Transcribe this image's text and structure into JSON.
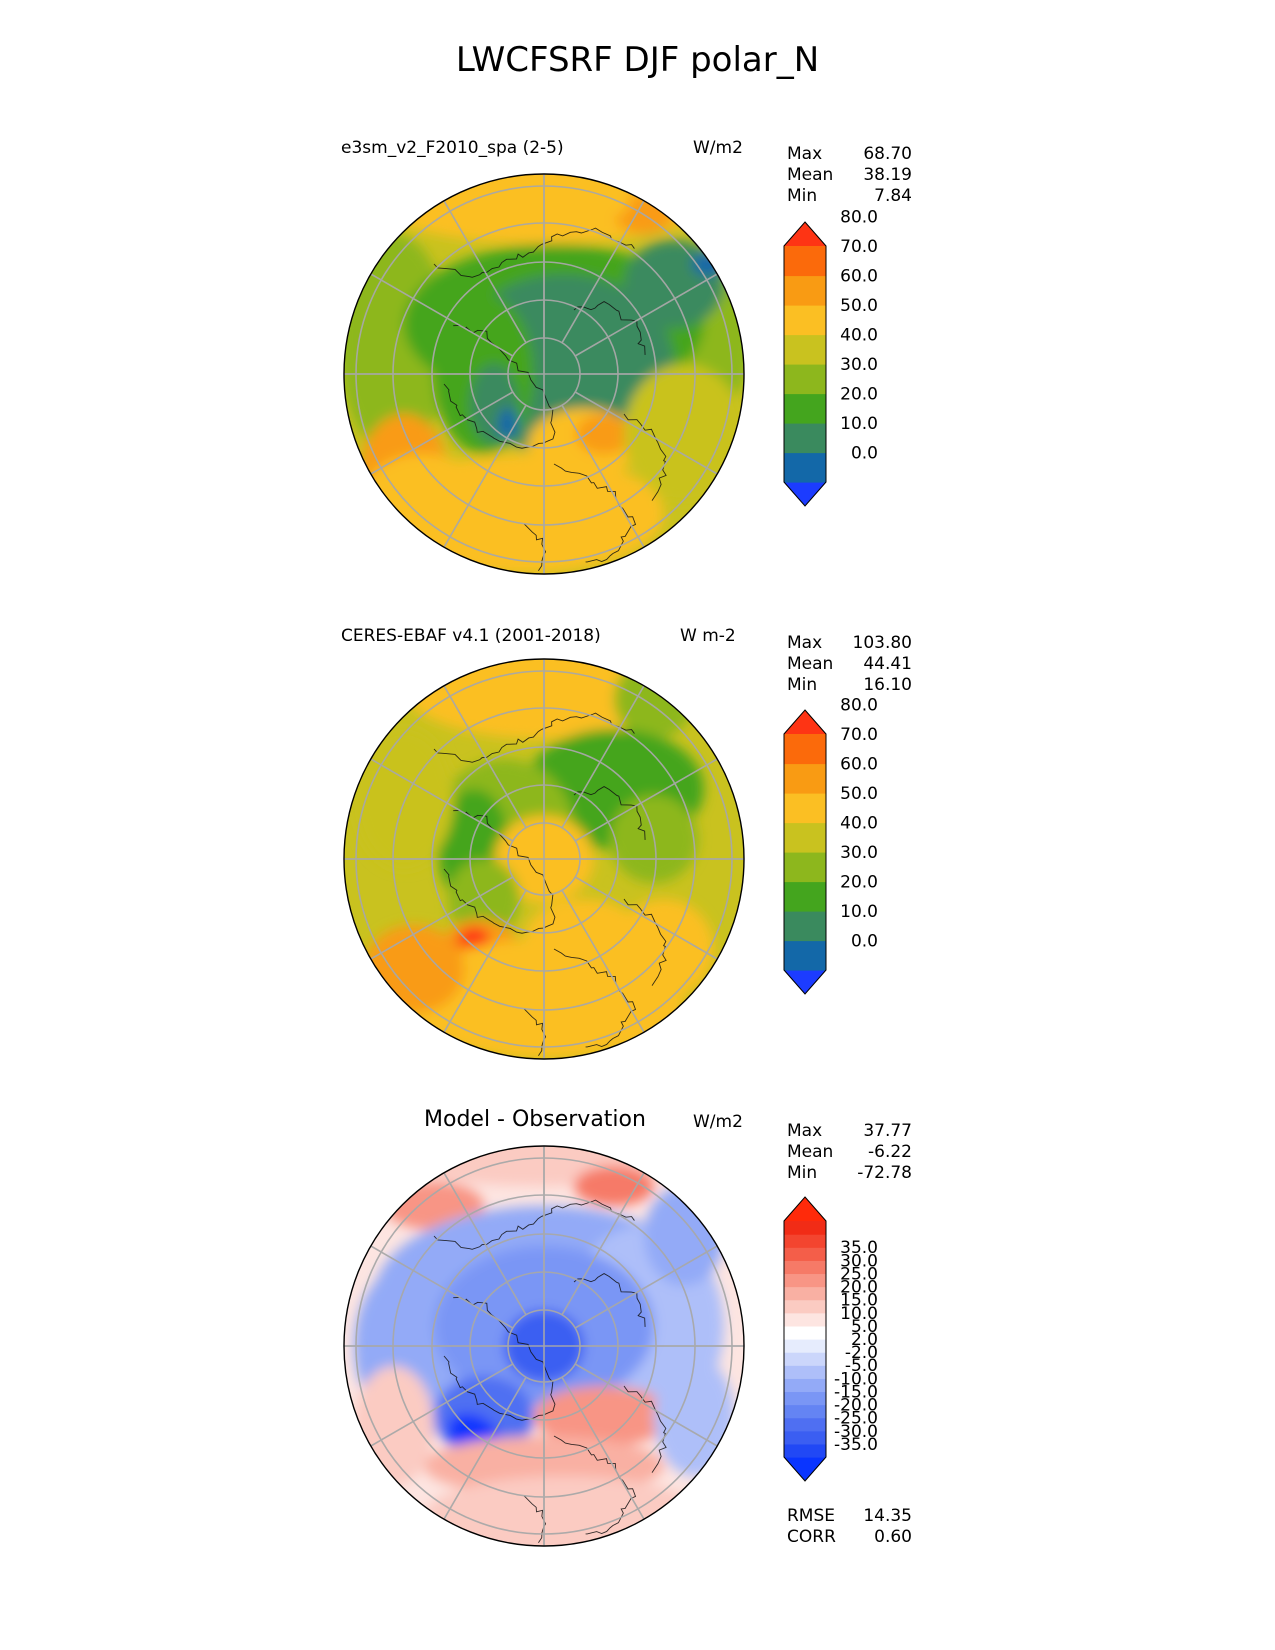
{
  "figure": {
    "title": "LWCFSRF DJF polar_N"
  },
  "panels": [
    {
      "id": "test",
      "title": "e3sm_v2_F2010_spa (2-5)",
      "units": "W/m2",
      "stats": [
        {
          "label": "Max",
          "value": "68.70"
        },
        {
          "label": "Mean",
          "value": "38.19"
        },
        {
          "label": "Min",
          "value": "7.84"
        }
      ],
      "colorbar": {
        "colors": [
          "#1c3cff",
          "#1368a8",
          "#3a8a5e",
          "#44a51e",
          "#8db71d",
          "#c9c21f",
          "#fbbf23",
          "#f99b13",
          "#fb6a0b",
          "#fe3414"
        ],
        "labels": [
          "0.0",
          "10.0",
          "20.0",
          "30.0",
          "40.0",
          "50.0",
          "60.0",
          "70.0",
          "80.0"
        ]
      }
    },
    {
      "id": "reference",
      "title": "CERES-EBAF v4.1 (2001-2018)",
      "units": "W m-2",
      "stats": [
        {
          "label": "Max",
          "value": "103.80"
        },
        {
          "label": "Mean",
          "value": "44.41"
        },
        {
          "label": "Min",
          "value": "16.10"
        }
      ],
      "colorbar": {
        "colors": [
          "#1c3cff",
          "#1368a8",
          "#3a8a5e",
          "#44a51e",
          "#8db71d",
          "#c9c21f",
          "#fbbf23",
          "#f99b13",
          "#fb6a0b",
          "#fe3414"
        ],
        "labels": [
          "0.0",
          "10.0",
          "20.0",
          "30.0",
          "40.0",
          "50.0",
          "60.0",
          "70.0",
          "80.0"
        ]
      }
    },
    {
      "id": "diff",
      "title": "Model - Observation",
      "units": "W/m2",
      "stats": [
        {
          "label": "Max",
          "value": "37.77"
        },
        {
          "label": "Mean",
          "value": "-6.22"
        },
        {
          "label": "Min",
          "value": "-72.78"
        }
      ],
      "colorbar": {
        "colors": [
          "#0a35ff",
          "#2148f5",
          "#3b5ef2",
          "#4f6ff2",
          "#6484f3",
          "#7a96f5",
          "#93aaf7",
          "#aebff9",
          "#cbd6fb",
          "#e6ecfd",
          "#ffffff",
          "#fde5e1",
          "#fbcbc2",
          "#f9b0a3",
          "#f89585",
          "#f67a67",
          "#f45e49",
          "#f3452f",
          "#f12c16",
          "#ff2a0a"
        ],
        "labels": [
          "-35.0",
          "-30.0",
          "-25.0",
          "-20.0",
          "-15.0",
          "-10.0",
          "-5.0",
          "-2.0",
          "2.0",
          "5.0",
          "10.0",
          "15.0",
          "20.0",
          "25.0",
          "30.0",
          "35.0"
        ]
      },
      "extra_stats": [
        {
          "label": "RMSE",
          "value": "14.35"
        },
        {
          "label": "CORR",
          "value": "0.60"
        }
      ]
    }
  ]
}
